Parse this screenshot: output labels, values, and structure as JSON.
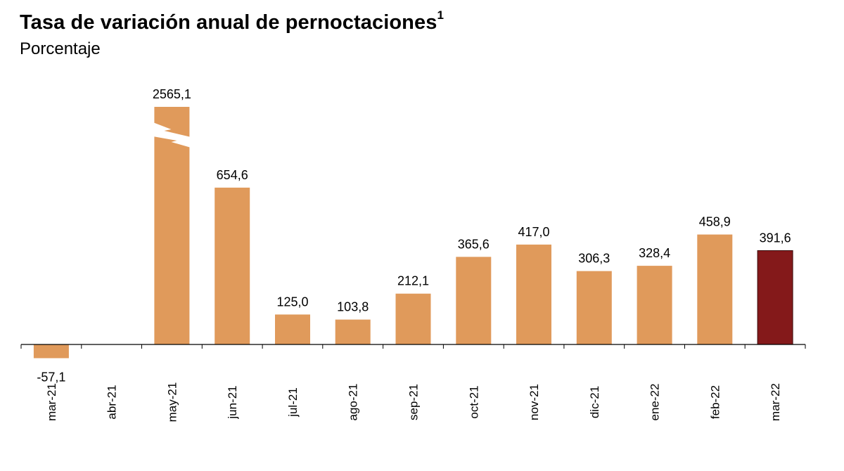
{
  "title": "Tasa de variación anual de pernoctaciones",
  "title_superscript": "1",
  "subtitle": "Porcentaje",
  "chart_data": {
    "type": "bar",
    "title": "Tasa de variación anual de pernoctaciones",
    "subtitle": "Porcentaje",
    "xlabel": "",
    "ylabel": "",
    "categories": [
      "mar-21",
      "abr-21",
      "may-21",
      "jun-21",
      "jul-21",
      "ago-21",
      "sep-21",
      "oct-21",
      "nov-21",
      "dic-21",
      "ene-22",
      "feb-22",
      "mar-22"
    ],
    "values": [
      -57.1,
      null,
      2565.1,
      654.6,
      125.0,
      103.8,
      212.1,
      365.6,
      417.0,
      306.3,
      328.4,
      458.9,
      391.6
    ],
    "value_labels": [
      "-57,1",
      "",
      "2565,1",
      "654,6",
      "125,0",
      "103,8",
      "212,1",
      "365,6",
      "417,0",
      "306,3",
      "328,4",
      "458,9",
      "391,6"
    ],
    "broken_axis_bars": [
      "may-21"
    ],
    "highlight_category": "mar-22",
    "colors": {
      "bar": "#E09A5B",
      "highlight": "#84191A",
      "axis": "#000000"
    },
    "grid": false,
    "legend": "none"
  }
}
